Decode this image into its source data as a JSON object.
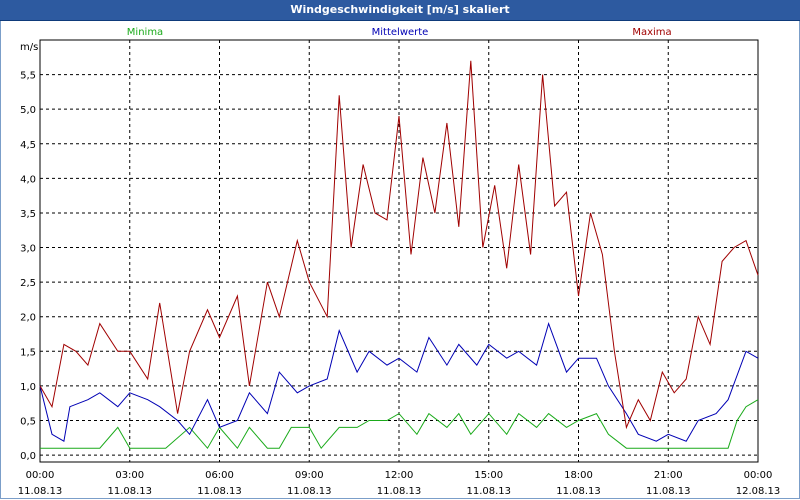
{
  "window": {
    "title": "Windgeschwindigkeit [m/s] skaliert"
  },
  "chart_data": {
    "type": "line",
    "title": "Windgeschwindigkeit [m/s] skaliert",
    "ylabel": "m/s",
    "ylim": [
      -0.1,
      6.0
    ],
    "yticks": [
      0.0,
      0.5,
      1.0,
      1.5,
      2.0,
      2.5,
      3.0,
      3.5,
      4.0,
      4.5,
      5.0,
      5.5
    ],
    "ytick_labels": [
      "0,0",
      "0,5",
      "1,0",
      "1,5",
      "2,0",
      "2,5",
      "3,0",
      "3,5",
      "4,0",
      "4,5",
      "5,0",
      "5,5"
    ],
    "xlim": [
      0,
      24
    ],
    "xticks": [
      0,
      3,
      6,
      9,
      12,
      15,
      18,
      21,
      24
    ],
    "xtick_time": [
      "00:00",
      "03:00",
      "06:00",
      "09:00",
      "12:00",
      "15:00",
      "18:00",
      "21:00",
      "00:00"
    ],
    "xtick_date": [
      "11.08.13",
      "11.08.13",
      "11.08.13",
      "11.08.13",
      "11.08.13",
      "11.08.13",
      "11.08.13",
      "11.08.13",
      "12.08.13"
    ],
    "grid": true,
    "series": [
      {
        "name": "Minima",
        "color": "#1aaa1a",
        "x": [
          0,
          1,
          2,
          2.6,
          3,
          3.6,
          4.2,
          5,
          5.6,
          6,
          6.6,
          7,
          7.6,
          8,
          8.4,
          9,
          9.4,
          10,
          10.6,
          11,
          11.6,
          12,
          12.6,
          13,
          13.6,
          14,
          14.4,
          15,
          15.6,
          16,
          16.6,
          17,
          17.6,
          18,
          18.6,
          19,
          19.6,
          20,
          20.6,
          21,
          21.6,
          22,
          22.6,
          23,
          23.3,
          23.6,
          24
        ],
        "y": [
          0.1,
          0.1,
          0.1,
          0.4,
          0.1,
          0.1,
          0.1,
          0.4,
          0.1,
          0.4,
          0.1,
          0.4,
          0.1,
          0.1,
          0.4,
          0.4,
          0.1,
          0.4,
          0.4,
          0.5,
          0.5,
          0.6,
          0.3,
          0.6,
          0.4,
          0.6,
          0.3,
          0.6,
          0.3,
          0.6,
          0.4,
          0.6,
          0.4,
          0.5,
          0.6,
          0.3,
          0.1,
          0.1,
          0.1,
          0.1,
          0.1,
          0.1,
          0.1,
          0.1,
          0.5,
          0.7,
          0.8
        ]
      },
      {
        "name": "Mittelwerte",
        "color": "#0000b4",
        "x": [
          0,
          0.4,
          0.8,
          1,
          1.6,
          2,
          2.6,
          3,
          3.6,
          4,
          4.6,
          5,
          5.6,
          6,
          6.6,
          7,
          7.6,
          8,
          8.6,
          9,
          9.6,
          10,
          10.6,
          11,
          11.6,
          12,
          12.6,
          13,
          13.6,
          14,
          14.6,
          15,
          15.6,
          16,
          16.6,
          17,
          17.6,
          18,
          18.6,
          19,
          19.6,
          20,
          20.6,
          21,
          21.6,
          22,
          22.6,
          23,
          23.6,
          24
        ],
        "y": [
          1.0,
          0.3,
          0.2,
          0.7,
          0.8,
          0.9,
          0.7,
          0.9,
          0.8,
          0.7,
          0.5,
          0.3,
          0.8,
          0.4,
          0.5,
          0.9,
          0.6,
          1.2,
          0.9,
          1.0,
          1.1,
          1.8,
          1.2,
          1.5,
          1.3,
          1.4,
          1.2,
          1.7,
          1.3,
          1.6,
          1.3,
          1.6,
          1.4,
          1.5,
          1.3,
          1.9,
          1.2,
          1.4,
          1.4,
          1.0,
          0.6,
          0.3,
          0.2,
          0.3,
          0.2,
          0.5,
          0.6,
          0.8,
          1.5,
          1.4
        ]
      },
      {
        "name": "Maxima",
        "color": "#a00000",
        "x": [
          0,
          0.4,
          0.8,
          1.2,
          1.6,
          2,
          2.6,
          3,
          3.6,
          4,
          4.6,
          5,
          5.6,
          6,
          6.6,
          7,
          7.6,
          8,
          8.6,
          9,
          9.6,
          10,
          10.4,
          10.8,
          11.2,
          11.6,
          12,
          12.4,
          12.8,
          13.2,
          13.6,
          14,
          14.4,
          14.8,
          15.2,
          15.6,
          16,
          16.4,
          16.8,
          17.2,
          17.6,
          18,
          18.4,
          18.8,
          19.2,
          19.6,
          20,
          20.4,
          20.8,
          21.2,
          21.6,
          22,
          22.4,
          22.8,
          23.2,
          23.6,
          24
        ],
        "y": [
          1.0,
          0.7,
          1.6,
          1.5,
          1.3,
          1.9,
          1.5,
          1.5,
          1.1,
          2.2,
          0.6,
          1.5,
          2.1,
          1.7,
          2.3,
          1.0,
          2.5,
          2.0,
          3.1,
          2.5,
          2.0,
          5.2,
          3.0,
          4.2,
          3.5,
          3.4,
          4.9,
          2.9,
          4.3,
          3.5,
          4.8,
          3.3,
          5.7,
          3.0,
          3.9,
          2.7,
          4.2,
          2.9,
          5.5,
          3.6,
          3.8,
          2.3,
          3.5,
          2.9,
          1.5,
          0.4,
          0.8,
          0.5,
          1.2,
          0.9,
          1.1,
          2.0,
          1.6,
          2.8,
          3.0,
          3.1,
          2.6
        ]
      }
    ]
  }
}
